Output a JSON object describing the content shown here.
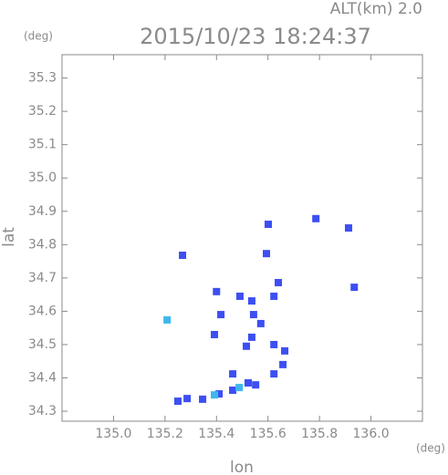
{
  "chart_data": {
    "type": "scatter",
    "title": "2015/10/23 18:24:37",
    "subtitle": "ALT(km)  2.0",
    "y_unit": "(deg)",
    "x_unit": "(deg)",
    "x_label": "lon",
    "y_label": "lat",
    "xlim": [
      134.8,
      136.2
    ],
    "ylim": [
      34.27,
      35.37
    ],
    "xticks": [
      {
        "value": 135,
        "label": "135.0"
      },
      135.2,
      135.4,
      135.6,
      135.8,
      {
        "value": 136,
        "label": "136.0"
      }
    ],
    "yticks": [
      34.3,
      34.4,
      34.5,
      34.6,
      34.7,
      34.8,
      34.9,
      {
        "value": 35,
        "label": "35.0"
      },
      35.1,
      35.2,
      35.3
    ],
    "series": [
      {
        "color": "#3d4ff2",
        "x": [
          135.786,
          135.913,
          135.935,
          135.601,
          135.594,
          135.64,
          135.491,
          135.537,
          135.544,
          135.572,
          135.537,
          135.516,
          135.623,
          135.665,
          135.658,
          135.392,
          135.417,
          135.523,
          135.552,
          135.463,
          135.41,
          135.346,
          135.286,
          135.25,
          135.623,
          135.4,
          135.463,
          135.623,
          135.268
        ],
        "y": [
          34.878,
          34.85,
          34.672,
          34.861,
          34.773,
          34.686,
          34.645,
          34.631,
          34.59,
          34.563,
          34.522,
          34.495,
          34.5,
          34.481,
          34.44,
          34.53,
          34.59,
          34.385,
          34.379,
          34.363,
          34.352,
          34.336,
          34.338,
          34.33,
          34.645,
          34.659,
          34.412,
          34.412,
          34.768
        ]
      },
      {
        "color": "#3cb8ee",
        "x": [
          135.208,
          135.392,
          135.488
        ],
        "y": [
          34.574,
          34.349,
          34.371
        ]
      }
    ]
  }
}
